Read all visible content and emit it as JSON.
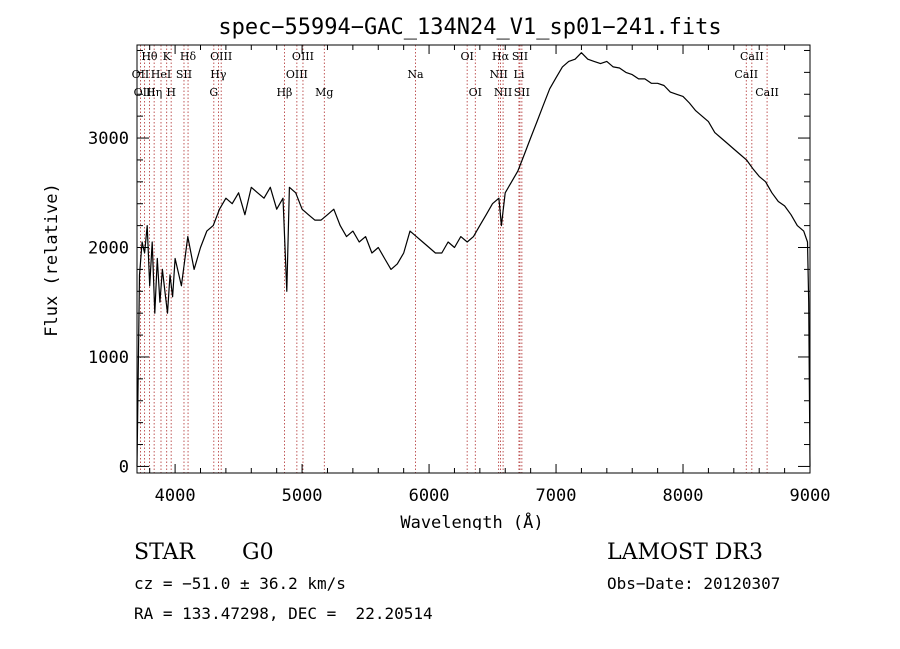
{
  "chart_data": {
    "type": "line",
    "title": "spec−55994−GAC_134N24_V1_sp01−241.fits",
    "xlabel": "Wavelength (Å)",
    "ylabel": "Flux (relative)",
    "xlim": [
      3700,
      9000
    ],
    "ylim": [
      -60,
      3850
    ],
    "x_ticks": [
      4000,
      5000,
      6000,
      7000,
      8000,
      9000
    ],
    "y_ticks": [
      0,
      1000,
      2000,
      3000
    ],
    "grid": false,
    "series": [
      {
        "name": "flux",
        "color": "#000000",
        "x": [
          3700,
          3720,
          3740,
          3760,
          3780,
          3800,
          3820,
          3840,
          3860,
          3880,
          3900,
          3920,
          3940,
          3960,
          3980,
          4000,
          4050,
          4100,
          4150,
          4200,
          4250,
          4300,
          4350,
          4400,
          4450,
          4500,
          4550,
          4600,
          4650,
          4700,
          4750,
          4800,
          4850,
          4880,
          4900,
          4950,
          5000,
          5050,
          5100,
          5150,
          5200,
          5250,
          5300,
          5350,
          5400,
          5450,
          5500,
          5550,
          5600,
          5650,
          5700,
          5750,
          5800,
          5850,
          5900,
          5950,
          6000,
          6050,
          6100,
          6150,
          6200,
          6250,
          6300,
          6350,
          6400,
          6450,
          6500,
          6550,
          6570,
          6600,
          6650,
          6700,
          6750,
          6800,
          6850,
          6900,
          6950,
          7000,
          7050,
          7100,
          7150,
          7200,
          7250,
          7300,
          7350,
          7400,
          7450,
          7500,
          7550,
          7600,
          7650,
          7700,
          7750,
          7800,
          7850,
          7900,
          7950,
          8000,
          8050,
          8100,
          8150,
          8200,
          8250,
          8300,
          8350,
          8400,
          8450,
          8500,
          8550,
          8600,
          8650,
          8700,
          8750,
          8800,
          8850,
          8900,
          8950,
          8980,
          8990,
          9000
        ],
        "values": [
          0,
          1750,
          2050,
          1950,
          2200,
          1650,
          2050,
          1400,
          1900,
          1500,
          1800,
          1600,
          1400,
          1750,
          1550,
          1900,
          1650,
          2100,
          1800,
          2000,
          2150,
          2200,
          2350,
          2450,
          2400,
          2500,
          2300,
          2550,
          2500,
          2450,
          2550,
          2350,
          2450,
          1600,
          2550,
          2500,
          2350,
          2300,
          2250,
          2250,
          2300,
          2350,
          2200,
          2100,
          2150,
          2050,
          2100,
          1950,
          2000,
          1900,
          1800,
          1850,
          1950,
          2150,
          2100,
          2050,
          2000,
          1950,
          1950,
          2050,
          2000,
          2100,
          2050,
          2100,
          2200,
          2300,
          2400,
          2450,
          2200,
          2500,
          2600,
          2700,
          2850,
          3000,
          3150,
          3300,
          3450,
          3550,
          3650,
          3700,
          3720,
          3780,
          3720,
          3700,
          3680,
          3700,
          3650,
          3640,
          3600,
          3580,
          3540,
          3540,
          3500,
          3500,
          3480,
          3420,
          3400,
          3380,
          3320,
          3250,
          3200,
          3150,
          3050,
          3000,
          2950,
          2900,
          2850,
          2800,
          2720,
          2650,
          2600,
          2500,
          2420,
          2380,
          2300,
          2200,
          2150,
          2050,
          1500,
          0
        ]
      }
    ],
    "line_labels": [
      {
        "label": "Hθ",
        "x": 3798,
        "row": 0
      },
      {
        "label": "OII",
        "x": 3727,
        "row": 1
      },
      {
        "label": "OIII",
        "x": 3760,
        "row": 2
      },
      {
        "label": "K",
        "x": 3934,
        "row": 0
      },
      {
        "label": "HeI",
        "x": 3889,
        "row": 1
      },
      {
        "label": "Hη",
        "x": 3835,
        "row": 2
      },
      {
        "label": "Hδ",
        "x": 4102,
        "row": 0
      },
      {
        "label": "SII",
        "x": 4070,
        "row": 1
      },
      {
        "label": "H",
        "x": 3969,
        "row": 2
      },
      {
        "label": "OIII",
        "x": 4363,
        "row": 0
      },
      {
        "label": "Hγ",
        "x": 4341,
        "row": 1
      },
      {
        "label": "G",
        "x": 4305,
        "row": 2
      },
      {
        "label": "OIII",
        "x": 5007,
        "row": 0
      },
      {
        "label": "OIII",
        "x": 4959,
        "row": 1
      },
      {
        "label": "Hβ",
        "x": 4861,
        "row": 2
      },
      {
        "label": "Mg",
        "x": 5175,
        "row": 2
      },
      {
        "label": "Na",
        "x": 5893,
        "row": 1
      },
      {
        "label": "OI",
        "x": 6300,
        "row": 0
      },
      {
        "label": "OI",
        "x": 6364,
        "row": 2
      },
      {
        "label": "Hα",
        "x": 6563,
        "row": 0
      },
      {
        "label": "SII",
        "x": 6716,
        "row": 0
      },
      {
        "label": "NII",
        "x": 6548,
        "row": 1
      },
      {
        "label": "Li",
        "x": 6708,
        "row": 1
      },
      {
        "label": "NII",
        "x": 6583,
        "row": 2
      },
      {
        "label": "SII",
        "x": 6731,
        "row": 2
      },
      {
        "label": "CaII",
        "x": 8542,
        "row": 0
      },
      {
        "label": "CaII",
        "x": 8498,
        "row": 1
      },
      {
        "label": "CaII",
        "x": 8662,
        "row": 2
      }
    ],
    "line_color": "#b03030"
  },
  "info": {
    "class_label": "STAR",
    "subclass_label": "G0",
    "cz_text": "cz = −51.0 ± 36.2 km/s",
    "coords_text": "RA = 133.47298, DEC =  22.20514",
    "survey_text": "LAMOST DR3",
    "obs_date_text": "Obs−Date: 20120307"
  }
}
